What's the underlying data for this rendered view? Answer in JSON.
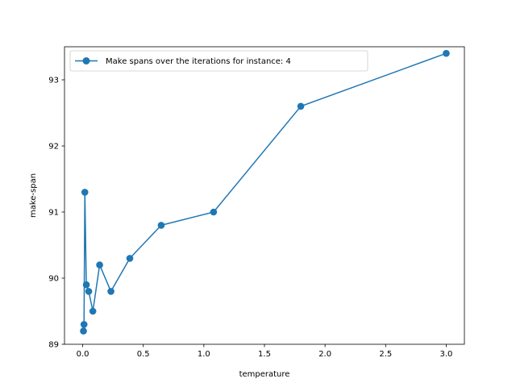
{
  "chart_data": {
    "type": "line",
    "title": "",
    "xlabel": "temperature",
    "ylabel": "make-span",
    "xlim": [
      -0.15,
      3.15
    ],
    "ylim": [
      89.0,
      93.5
    ],
    "x_ticks": [
      0.0,
      0.5,
      1.0,
      1.5,
      2.0,
      2.5,
      3.0
    ],
    "x_tick_labels": [
      "0.0",
      "0.5",
      "1.0",
      "1.5",
      "2.0",
      "2.5",
      "3.0"
    ],
    "y_ticks": [
      89,
      90,
      91,
      92,
      93
    ],
    "y_tick_labels": [
      "89",
      "90",
      "91",
      "92",
      "93"
    ],
    "grid": false,
    "legend_position": "upper-left",
    "series": [
      {
        "name": "Make spans over the iterations for instance: 4",
        "color": "#1f77b4",
        "marker": "circle",
        "x": [
          3.0,
          1.8,
          1.08,
          0.648,
          0.389,
          0.233,
          0.14,
          0.084,
          0.05,
          0.03,
          0.018,
          0.011,
          0.0065
        ],
        "y": [
          93.4,
          92.6,
          91.0,
          90.8,
          90.3,
          89.8,
          90.2,
          89.5,
          89.8,
          89.9,
          91.3,
          89.3,
          89.2
        ]
      }
    ]
  }
}
